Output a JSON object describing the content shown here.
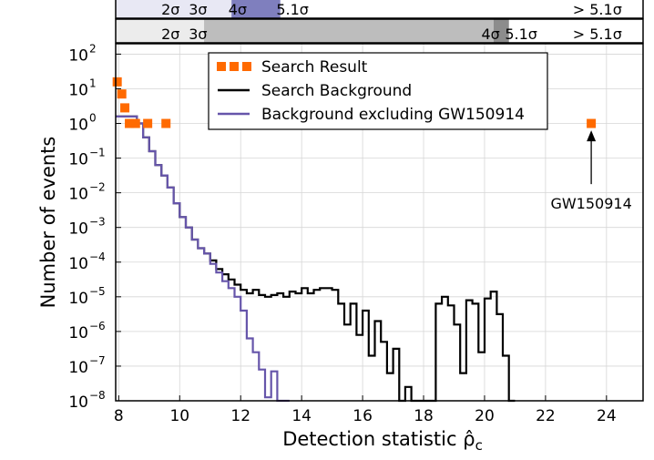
{
  "chart_data": {
    "type": "line",
    "xlabel": "Detection statistic ρ̂",
    "xlabel_sub": "c",
    "ylabel": "Number of events",
    "xlim": [
      7.9,
      25.2
    ],
    "ylim_log10": [
      -8,
      2.3
    ],
    "y_scale": "log",
    "grid": true,
    "legend_position": "top-center",
    "x_ticks": [
      8,
      10,
      12,
      14,
      16,
      18,
      20,
      22,
      24
    ],
    "y_ticks": [
      {
        "exp": -8,
        "label": "10",
        "sup": "−8"
      },
      {
        "exp": -7,
        "label": "10",
        "sup": "−7"
      },
      {
        "exp": -6,
        "label": "10",
        "sup": "−6"
      },
      {
        "exp": -5,
        "label": "10",
        "sup": "−5"
      },
      {
        "exp": -4,
        "label": "10",
        "sup": "−4"
      },
      {
        "exp": -3,
        "label": "10",
        "sup": "−3"
      },
      {
        "exp": -2,
        "label": "10",
        "sup": "−2"
      },
      {
        "exp": -1,
        "label": "10",
        "sup": "−1"
      },
      {
        "exp": 0,
        "label": "10",
        "sup": "0"
      },
      {
        "exp": 1,
        "label": "10",
        "sup": "1"
      },
      {
        "exp": 2,
        "label": "10",
        "sup": "2"
      }
    ],
    "legend": [
      {
        "label": "Search Result",
        "color": "#ff6a00",
        "kind": "square"
      },
      {
        "label": "Search Background",
        "color": "#000000",
        "kind": "line"
      },
      {
        "label": "Background excluding GW150914",
        "color": "#6655aa",
        "kind": "line"
      }
    ],
    "series": [
      {
        "name": "Search Background",
        "color": "#000000",
        "x": [
          7.9,
          8.6,
          8.8,
          9.0,
          9.2,
          9.4,
          9.6,
          9.8,
          10.0,
          10.2,
          10.4,
          10.6,
          10.8,
          11.0,
          11.2,
          11.4,
          11.6,
          11.8,
          12.0,
          12.2,
          12.4,
          12.6,
          12.8,
          13.0,
          13.2,
          13.4,
          13.6,
          13.8,
          14.0,
          14.2,
          14.4,
          14.6,
          14.8,
          15.0,
          15.2,
          15.4,
          15.6,
          15.8,
          16.0,
          16.2,
          16.4,
          16.6,
          16.8,
          17.0,
          17.2,
          17.4,
          17.6,
          17.8,
          18.0,
          18.2,
          18.4,
          18.6,
          18.8,
          19.0,
          19.2,
          19.4,
          19.6,
          19.8,
          20.0,
          20.2,
          20.4,
          20.6,
          20.8
        ],
        "y_log10": [
          0.2,
          0.0,
          -0.4,
          -0.8,
          -1.2,
          -1.5,
          -1.85,
          -2.3,
          -2.7,
          -3.0,
          -3.35,
          -3.6,
          -3.75,
          -3.95,
          -4.2,
          -4.35,
          -4.5,
          -4.65,
          -4.8,
          -4.9,
          -4.8,
          -4.95,
          -5.0,
          -4.95,
          -4.9,
          -5.0,
          -4.85,
          -4.9,
          -4.75,
          -4.9,
          -4.8,
          -4.75,
          -4.75,
          -4.8,
          -5.2,
          -5.8,
          -5.2,
          -6.1,
          -5.4,
          -6.7,
          -5.7,
          -6.3,
          -7.2,
          -6.5,
          -8.4,
          -7.6,
          -8.4,
          -8.4,
          -8.4,
          -8.4,
          -5.2,
          -5.0,
          -5.25,
          -5.8,
          -7.2,
          -5.1,
          -5.2,
          -6.6,
          -5.05,
          -4.85,
          -5.5,
          -6.7,
          -8.4
        ]
      },
      {
        "name": "Background excluding GW150914",
        "color": "#6655aa",
        "x": [
          7.9,
          8.6,
          8.8,
          9.0,
          9.2,
          9.4,
          9.6,
          9.8,
          10.0,
          10.2,
          10.4,
          10.6,
          10.8,
          11.0,
          11.2,
          11.4,
          11.6,
          11.8,
          12.0,
          12.2,
          12.4,
          12.6,
          12.8,
          13.0,
          13.2,
          13.4
        ],
        "y_log10": [
          0.2,
          0.0,
          -0.4,
          -0.8,
          -1.2,
          -1.5,
          -1.85,
          -2.3,
          -2.7,
          -3.0,
          -3.35,
          -3.6,
          -3.75,
          -4.05,
          -4.3,
          -4.55,
          -4.75,
          -5.0,
          -5.4,
          -6.2,
          -6.6,
          -7.1,
          -7.9,
          -7.15,
          -8.4,
          -8.4
        ]
      }
    ],
    "search_result": {
      "name": "Search Result",
      "color": "#ff6a00",
      "x": [
        7.95,
        8.1,
        8.2,
        8.35,
        8.55,
        8.95,
        9.55,
        23.5
      ],
      "y_log10": [
        1.2,
        0.85,
        0.45,
        0.0,
        0.0,
        0.0,
        0.0,
        0.0
      ]
    },
    "annotations": [
      {
        "text": "GW150914",
        "x": 23.5,
        "arrow_from_log10": -1.75,
        "arrow_to_log10": -0.2,
        "text_log10": -2.45
      }
    ],
    "sigma_bars": [
      {
        "fill": "#e6e6f2",
        "cover_from": 7.9,
        "cover_to": 12.9,
        "bands": [
          {
            "from": 7.9,
            "to": 11.7,
            "color": "#e8e8f4"
          },
          {
            "from": 11.7,
            "to": 13.3,
            "color": "#7f7fbe"
          }
        ],
        "labels": [
          {
            "text": "2σ",
            "x": 9.7
          },
          {
            "text": "3σ",
            "x": 10.6
          },
          {
            "text": "4σ",
            "x": 11.9
          },
          {
            "text": "5.1σ",
            "x": 13.7
          },
          {
            "text": "> 5.1σ",
            "x": 23.7
          }
        ]
      },
      {
        "bands": [
          {
            "from": 7.9,
            "to": 10.8,
            "color": "#ececec"
          },
          {
            "from": 10.8,
            "to": 20.3,
            "color": "#bdbdbd"
          },
          {
            "from": 20.3,
            "to": 20.8,
            "color": "#8c8c8c"
          }
        ],
        "labels": [
          {
            "text": "2σ",
            "x": 9.7
          },
          {
            "text": "3σ",
            "x": 10.6
          },
          {
            "text": "4σ",
            "x": 20.2
          },
          {
            "text": "5.1σ",
            "x": 21.2
          },
          {
            "text": "> 5.1σ",
            "x": 23.7
          }
        ]
      }
    ]
  }
}
